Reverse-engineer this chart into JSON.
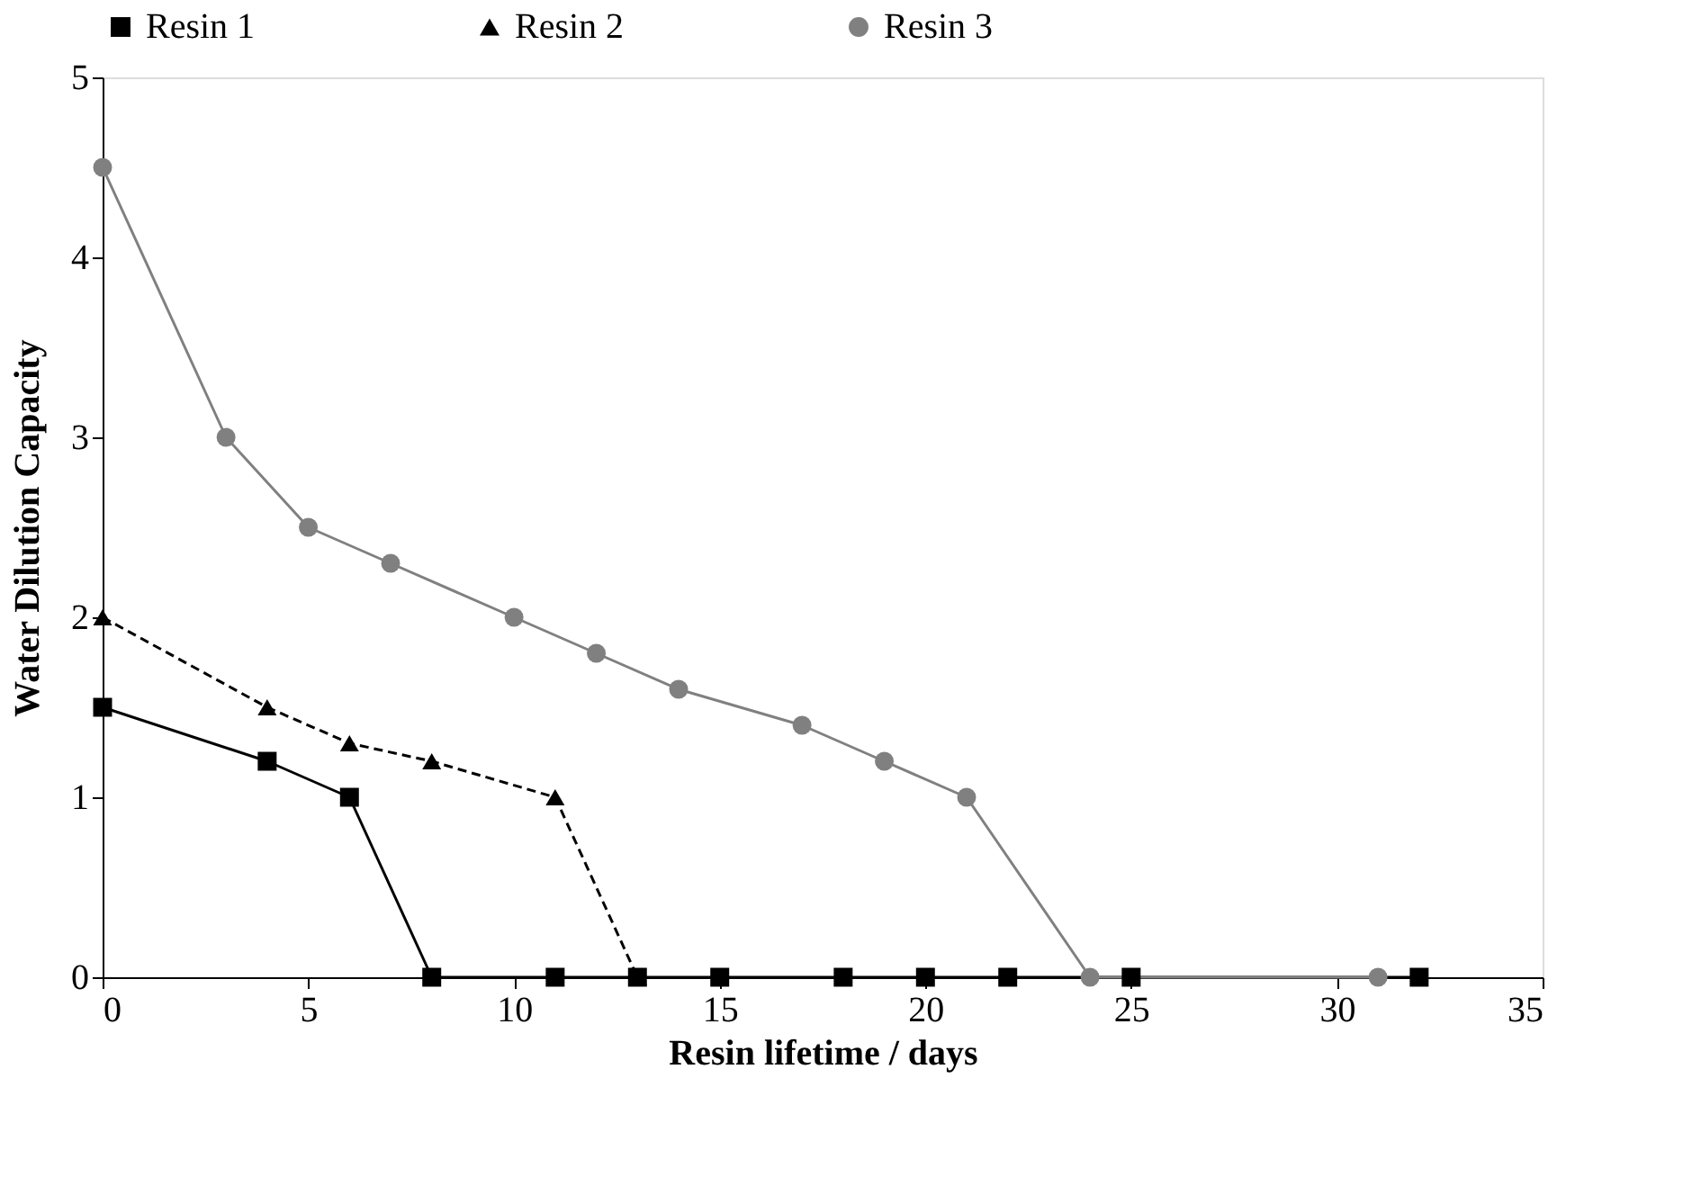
{
  "chart_data": {
    "type": "line",
    "xlabel": "Resin lifetime / days",
    "ylabel": "Water Dilution Capacity",
    "xlim": [
      0,
      35
    ],
    "xticks": [
      0,
      5,
      10,
      15,
      20,
      25,
      30,
      35
    ],
    "ylim": [
      0,
      5
    ],
    "yticks": [
      0,
      1,
      2,
      3,
      4,
      5
    ],
    "grid": false,
    "legend": "top",
    "series": [
      {
        "name": "Resin 1",
        "color": "#000000",
        "marker": "square",
        "line_style": "solid",
        "x": [
          0,
          4,
          6,
          8,
          11,
          13,
          15,
          18,
          20,
          22,
          25,
          32
        ],
        "values": [
          1.5,
          1.2,
          1.0,
          0,
          0,
          0,
          0,
          0,
          0,
          0,
          0,
          0
        ]
      },
      {
        "name": "Resin 2",
        "color": "#000000",
        "marker": "triangle",
        "line_style": "dashed",
        "x": [
          0,
          4,
          6,
          8,
          11,
          13
        ],
        "values": [
          2.0,
          1.5,
          1.3,
          1.2,
          1.0,
          0
        ]
      },
      {
        "name": "Resin 3",
        "color": "#808080",
        "marker": "circle",
        "line_style": "solid",
        "x": [
          0,
          3,
          5,
          7,
          10,
          12,
          14,
          17,
          19,
          21,
          24,
          31
        ],
        "values": [
          4.5,
          3.0,
          2.5,
          2.3,
          2.0,
          1.8,
          1.6,
          1.4,
          1.2,
          1.0,
          0,
          0
        ]
      }
    ]
  }
}
